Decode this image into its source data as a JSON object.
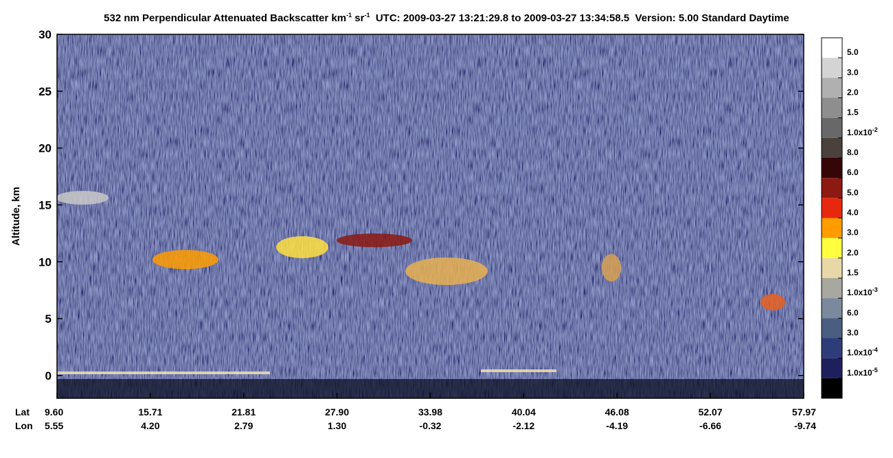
{
  "chart_data": {
    "type": "curtain",
    "title": {
      "main": "532 nm Perpendicular Attenuated Backscatter km",
      "unit_exp": "-1",
      "unit2": "sr",
      "unit2_exp": "-1",
      "info": "UTC: 2009-03-27 13:21:29.8 to 2009-03-27 13:34:58.5  Version: 5.00 Standard Daytime"
    },
    "y_label": "Altitude, km",
    "ylim": [
      -2,
      30
    ],
    "yticks": [
      0,
      5,
      10,
      15,
      20,
      25,
      30
    ],
    "x_row_labels": [
      "Lat",
      "Lon"
    ],
    "lat": [
      "9.60",
      "15.71",
      "21.81",
      "27.90",
      "33.98",
      "40.04",
      "46.08",
      "52.07",
      "57.97"
    ],
    "lon": [
      "5.55",
      "4.20",
      "2.79",
      "1.30",
      "-0.32",
      "-2.12",
      "-4.19",
      "-6.66",
      "-9.74"
    ],
    "colorbar": {
      "colors": [
        "#ffffff",
        "#d4d4d4",
        "#b0b0b0",
        "#8e8e8e",
        "#686868",
        "#4a403c",
        "#360606",
        "#8c1a12",
        "#e8280e",
        "#ff9c00",
        "#ffff40",
        "#e8d8a8",
        "#a8a8a0",
        "#7a8a9c",
        "#4a5e82",
        "#2e3c7a",
        "#1e205e",
        "#000000"
      ],
      "labels": [
        {
          "text": "5.0"
        },
        {
          "text": "3.0"
        },
        {
          "text": "2.0"
        },
        {
          "text": "1.5"
        },
        {
          "text": "1.0x10",
          "sup": "-2"
        },
        {
          "text": "8.0"
        },
        {
          "text": "6.0"
        },
        {
          "text": "5.0"
        },
        {
          "text": "4.0"
        },
        {
          "text": "3.0"
        },
        {
          "text": "2.0"
        },
        {
          "text": "1.5"
        },
        {
          "text": "1.0x10",
          "sup": "-3"
        },
        {
          "text": "6.0"
        },
        {
          "text": "3.0"
        },
        {
          "text": "1.0x10",
          "sup": "-4"
        },
        {
          "text": "1.0x10",
          "sup": "-5"
        }
      ]
    }
  }
}
